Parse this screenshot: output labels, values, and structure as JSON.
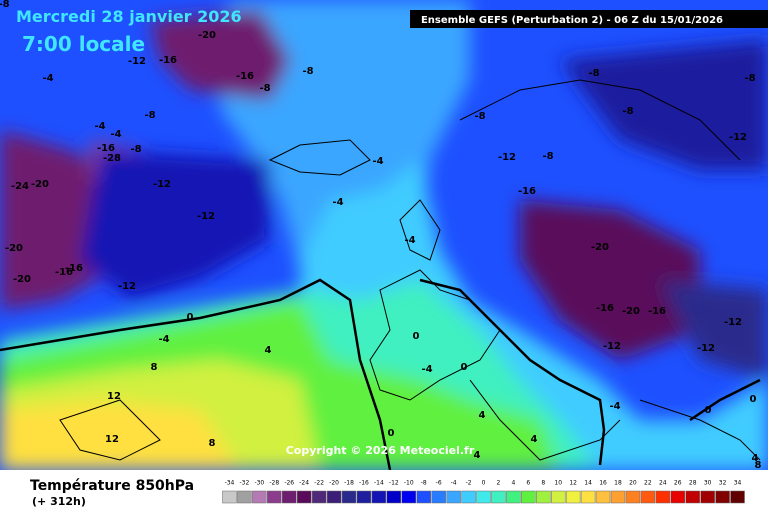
{
  "header": {
    "date": "Mercredi 28 janvier 2026",
    "time": "7:00 locale",
    "model": "Ensemble GEFS  (Perturbation 2)  -  06 Z du 15/01/2026"
  },
  "map": {
    "contour_labels": [
      -8,
      -20,
      -12,
      -16,
      -16,
      -8,
      -8,
      -4,
      -8,
      -4,
      -4,
      -16,
      -28,
      -8,
      -24,
      -20,
      -12,
      -12,
      -20,
      -20,
      -16,
      -16,
      -12,
      -4,
      -4,
      -4,
      0,
      -4,
      4,
      8,
      12,
      12,
      8,
      0,
      -4,
      0,
      4,
      4,
      4,
      0,
      -8,
      -8,
      -8,
      -8,
      -12,
      -12,
      -8,
      -16,
      -20,
      -16,
      -20,
      -16,
      -12,
      -12,
      -12,
      -4,
      0,
      0,
      4,
      8
    ],
    "copyright": "Copyright © 2026 Meteociel.fr"
  },
  "footer": {
    "title": "Température 850hPa",
    "lead": "(+ 312h)"
  },
  "colorbar": {
    "ticks": [
      -34,
      -32,
      -30,
      -28,
      -26,
      -24,
      -22,
      -20,
      -18,
      -16,
      -14,
      -12,
      -10,
      -8,
      -6,
      -4,
      -2,
      0,
      2,
      4,
      6,
      8,
      10,
      12,
      14,
      16,
      18,
      20,
      22,
      24,
      26,
      28,
      30,
      32,
      34
    ],
    "colors": [
      "#c8c8c8",
      "#a0a0a0",
      "#b47ab4",
      "#8c3c8c",
      "#6e1e6e",
      "#5a0a5a",
      "#50287a",
      "#3c1e78",
      "#2a2a8c",
      "#1e1e9e",
      "#1414b4",
      "#0000c8",
      "#0000f0",
      "#1e50ff",
      "#2a7cff",
      "#3aa6ff",
      "#40ccff",
      "#40eaea",
      "#40f0c0",
      "#40f080",
      "#60f040",
      "#a0f040",
      "#d2f040",
      "#f0f040",
      "#ffe040",
      "#ffc040",
      "#ffa030",
      "#ff8020",
      "#ff5a10",
      "#ff3000",
      "#e60000",
      "#c00000",
      "#a00000",
      "#800000",
      "#600000"
    ]
  }
}
